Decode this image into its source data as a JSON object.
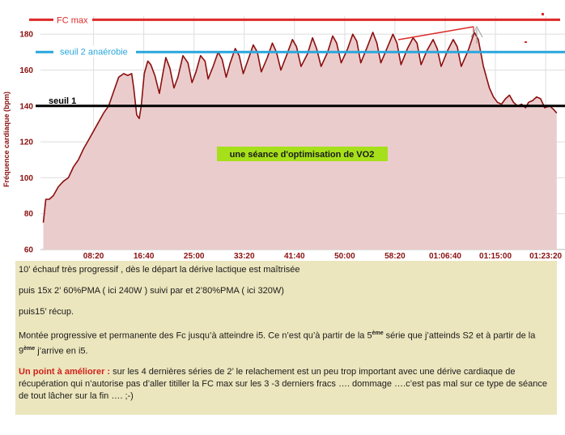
{
  "chart_data": {
    "type": "area",
    "ylabel": "Fréquence cardiaque (bpm)",
    "ylim": [
      60,
      190
    ],
    "yticks": [
      60,
      80,
      100,
      120,
      140,
      160,
      180
    ],
    "xlim": [
      0,
      5120
    ],
    "xticks": [
      {
        "t": 500,
        "label": "08:20"
      },
      {
        "t": 1000,
        "label": "16:40"
      },
      {
        "t": 1500,
        "label": "25:00"
      },
      {
        "t": 2000,
        "label": "33:20"
      },
      {
        "t": 2500,
        "label": "41:40"
      },
      {
        "t": 3000,
        "label": "50:00"
      },
      {
        "t": 3500,
        "label": "58:20"
      },
      {
        "t": 4000,
        "label": "01:06:40"
      },
      {
        "t": 4500,
        "label": "01:15:00"
      },
      {
        "t": 5000,
        "label": "01:23:20"
      }
    ],
    "grid": true,
    "series": [
      {
        "values": [
          [
            0,
            75
          ],
          [
            25,
            88
          ],
          [
            60,
            88
          ],
          [
            100,
            90
          ],
          [
            150,
            95
          ],
          [
            200,
            98
          ],
          [
            250,
            100
          ],
          [
            300,
            106
          ],
          [
            350,
            110
          ],
          [
            400,
            116
          ],
          [
            450,
            121
          ],
          [
            500,
            126
          ],
          [
            550,
            131
          ],
          [
            600,
            136
          ],
          [
            650,
            140
          ],
          [
            700,
            148
          ],
          [
            750,
            156
          ],
          [
            800,
            158
          ],
          [
            840,
            157
          ],
          [
            880,
            158
          ],
          [
            900,
            150
          ],
          [
            930,
            135
          ],
          [
            955,
            133
          ],
          [
            975,
            140
          ],
          [
            1005,
            158
          ],
          [
            1040,
            165
          ],
          [
            1070,
            163
          ],
          [
            1110,
            157
          ],
          [
            1155,
            147
          ],
          [
            1190,
            158
          ],
          [
            1220,
            167
          ],
          [
            1260,
            161
          ],
          [
            1300,
            150
          ],
          [
            1340,
            156
          ],
          [
            1390,
            168
          ],
          [
            1440,
            164
          ],
          [
            1480,
            153
          ],
          [
            1520,
            159
          ],
          [
            1565,
            168
          ],
          [
            1610,
            165
          ],
          [
            1640,
            155
          ],
          [
            1690,
            162
          ],
          [
            1740,
            170
          ],
          [
            1780,
            166
          ],
          [
            1820,
            156
          ],
          [
            1860,
            164
          ],
          [
            1910,
            172
          ],
          [
            1950,
            168
          ],
          [
            1990,
            158
          ],
          [
            2040,
            166
          ],
          [
            2090,
            174
          ],
          [
            2130,
            170
          ],
          [
            2170,
            159
          ],
          [
            2230,
            167
          ],
          [
            2280,
            175
          ],
          [
            2320,
            170
          ],
          [
            2365,
            160
          ],
          [
            2420,
            168
          ],
          [
            2480,
            177
          ],
          [
            2520,
            173
          ],
          [
            2565,
            162
          ],
          [
            2630,
            169
          ],
          [
            2680,
            178
          ],
          [
            2720,
            172
          ],
          [
            2765,
            162
          ],
          [
            2830,
            170
          ],
          [
            2880,
            179
          ],
          [
            2920,
            175
          ],
          [
            2965,
            164
          ],
          [
            3030,
            172
          ],
          [
            3080,
            180
          ],
          [
            3120,
            176
          ],
          [
            3160,
            164
          ],
          [
            3225,
            173
          ],
          [
            3280,
            181
          ],
          [
            3320,
            175
          ],
          [
            3360,
            164
          ],
          [
            3420,
            172
          ],
          [
            3480,
            180
          ],
          [
            3520,
            175
          ],
          [
            3560,
            163
          ],
          [
            3625,
            172
          ],
          [
            3680,
            178
          ],
          [
            3720,
            175
          ],
          [
            3760,
            163
          ],
          [
            3820,
            171
          ],
          [
            3880,
            177
          ],
          [
            3920,
            172
          ],
          [
            3960,
            162
          ],
          [
            4025,
            171
          ],
          [
            4080,
            177
          ],
          [
            4120,
            173
          ],
          [
            4160,
            162
          ],
          [
            4230,
            171
          ],
          [
            4290,
            181
          ],
          [
            4330,
            177
          ],
          [
            4380,
            162
          ],
          [
            4440,
            150
          ],
          [
            4480,
            145
          ],
          [
            4520,
            142
          ],
          [
            4560,
            141
          ],
          [
            4600,
            144
          ],
          [
            4640,
            146
          ],
          [
            4680,
            142
          ],
          [
            4720,
            140
          ],
          [
            4760,
            141
          ],
          [
            4800,
            139
          ],
          [
            4830,
            142
          ],
          [
            4870,
            143
          ],
          [
            4910,
            145
          ],
          [
            4950,
            144
          ],
          [
            4990,
            139
          ],
          [
            5040,
            140
          ],
          [
            5080,
            138
          ],
          [
            5110,
            136
          ]
        ]
      }
    ],
    "annotations": {
      "fc_max": {
        "label": "FC max",
        "value": 188
      },
      "seuil2": {
        "label": "seuil  2 anaérobie",
        "value": 170
      },
      "seuil1": {
        "label": "seuil 1",
        "value": 140
      },
      "caption": "une séance d'optimisation de VO2"
    },
    "colors": {
      "line": "#8b0f0f",
      "fill": "#ebcccc",
      "fc_max": "#dd2a27",
      "seuil2": "#29a6dd",
      "seuil1": "#000000",
      "caption_bg": "#a6e01a"
    }
  },
  "notes": {
    "p1": "10’ échauf très progressif , dès le départ la dérive lactique est maîtrisée",
    "p2": "puis 15x  2’   60%PMA  ( ici 240W )   suivi par et 2’80%PMA ( ici 320W)",
    "p3": "puis15’ récup.",
    "p4a": "Montée progressive et permanente des Fc jusqu’à atteindre i5. Ce n’est qu’à partir de la 5",
    "p4_sup1": "ème",
    "p4b": " série que j’atteinds S2 et à partir de la 9",
    "p4_sup2": "ème",
    "p4c": " j’arrive en i5.",
    "p5_highlight": "Un point à améliorer :",
    "p5_text": " sur les  4 dernières séries de 2’ le relachement est un peu trop important avec une dérive cardiaque de récupération qui n’autorise pas d’aller titiller la FC max sur les 3 -3 derniers fracs …. dommage ….c’est pas mal sur ce type de séance de tout lâcher sur la fin ….  ;-)"
  }
}
